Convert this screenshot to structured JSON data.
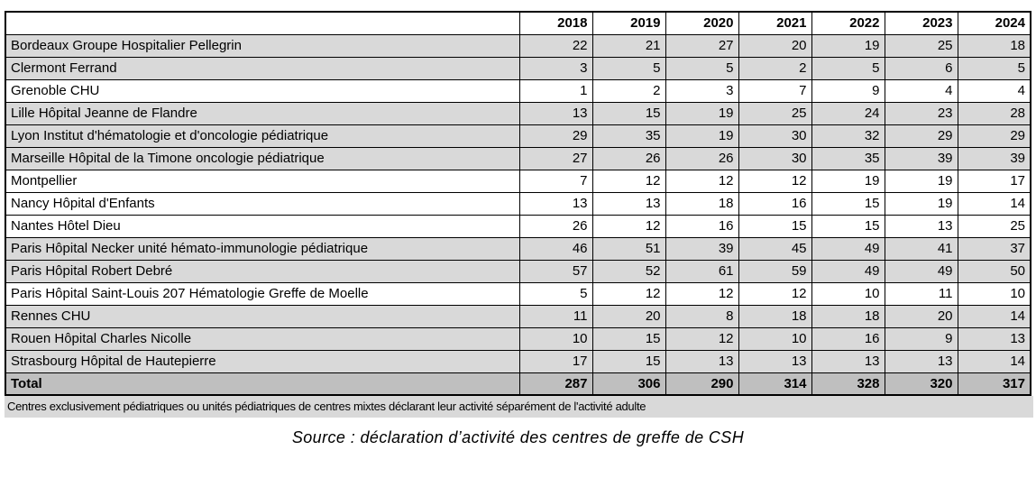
{
  "table": {
    "years": [
      "2018",
      "2019",
      "2020",
      "2021",
      "2022",
      "2023",
      "2024"
    ],
    "rows": [
      {
        "name": "Bordeaux Groupe Hospitalier Pellegrin",
        "shaded": true,
        "values": [
          22,
          21,
          27,
          20,
          19,
          25,
          18
        ]
      },
      {
        "name": "Clermont Ferrand",
        "shaded": true,
        "values": [
          3,
          5,
          5,
          2,
          5,
          6,
          5
        ]
      },
      {
        "name": "Grenoble CHU",
        "shaded": false,
        "values": [
          1,
          2,
          3,
          7,
          9,
          4,
          4
        ]
      },
      {
        "name": "Lille Hôpital Jeanne de Flandre",
        "shaded": true,
        "values": [
          13,
          15,
          19,
          25,
          24,
          23,
          28
        ]
      },
      {
        "name": "Lyon Institut d'hématologie et d'oncologie pédiatrique",
        "shaded": true,
        "values": [
          29,
          35,
          19,
          30,
          32,
          29,
          29
        ]
      },
      {
        "name": "Marseille Hôpital de la Timone oncologie pédiatrique",
        "shaded": true,
        "values": [
          27,
          26,
          26,
          30,
          35,
          39,
          39
        ]
      },
      {
        "name": "Montpellier",
        "shaded": false,
        "values": [
          7,
          12,
          12,
          12,
          19,
          19,
          17
        ]
      },
      {
        "name": "Nancy Hôpital d'Enfants",
        "shaded": false,
        "values": [
          13,
          13,
          18,
          16,
          15,
          19,
          14
        ]
      },
      {
        "name": "Nantes Hôtel Dieu",
        "shaded": false,
        "values": [
          26,
          12,
          16,
          15,
          15,
          13,
          25
        ]
      },
      {
        "name": "Paris Hôpital Necker unité hémato-immunologie pédiatrique",
        "shaded": true,
        "values": [
          46,
          51,
          39,
          45,
          49,
          41,
          37
        ]
      },
      {
        "name": "Paris Hôpital Robert Debré",
        "shaded": true,
        "values": [
          57,
          52,
          61,
          59,
          49,
          49,
          50
        ]
      },
      {
        "name": "Paris Hôpital Saint-Louis 207 Hématologie Greffe de Moelle",
        "shaded": false,
        "values": [
          5,
          12,
          12,
          12,
          10,
          11,
          10
        ]
      },
      {
        "name": "Rennes CHU",
        "shaded": true,
        "values": [
          11,
          20,
          8,
          18,
          18,
          20,
          14
        ]
      },
      {
        "name": "Rouen Hôpital Charles Nicolle",
        "shaded": true,
        "values": [
          10,
          15,
          12,
          10,
          16,
          9,
          13
        ]
      },
      {
        "name": "Strasbourg Hôpital de Hautepierre",
        "shaded": true,
        "values": [
          17,
          15,
          13,
          13,
          13,
          13,
          14
        ]
      }
    ],
    "total": {
      "label": "Total",
      "values": [
        287,
        306,
        290,
        314,
        328,
        320,
        317
      ]
    },
    "footnote": "Centres exclusivement pédiatriques ou unités pédiatriques de centres mixtes déclarant leur activité séparément de l'activité adulte"
  },
  "caption": "Source : déclaration d’activité des centres de greffe de CSH",
  "colors": {
    "shaded_row": "#d9d9d9",
    "total_row": "#bfbfbf",
    "footnote_bg": "#d9d9d9",
    "border": "#000000"
  }
}
